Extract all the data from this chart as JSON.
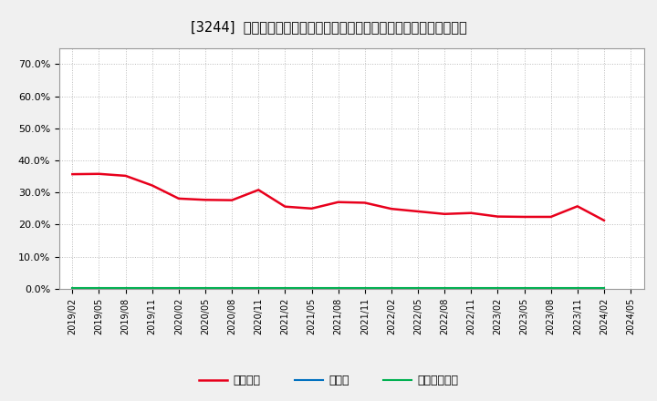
{
  "title": "[3244]  自己資本、のれん、繰延税金資産の総資産に対する比率の推移",
  "x_labels": [
    "2019/02",
    "2019/05",
    "2019/08",
    "2019/11",
    "2020/02",
    "2020/05",
    "2020/08",
    "2020/11",
    "2021/02",
    "2021/05",
    "2021/08",
    "2021/11",
    "2022/02",
    "2022/05",
    "2022/08",
    "2022/11",
    "2023/02",
    "2023/05",
    "2023/08",
    "2023/11",
    "2024/02",
    "2024/05"
  ],
  "equity_ratio": [
    0.357,
    0.358,
    0.352,
    0.322,
    0.281,
    0.277,
    0.276,
    0.308,
    0.256,
    0.25,
    0.27,
    0.268,
    0.249,
    0.241,
    0.233,
    0.236,
    0.225,
    0.224,
    0.224,
    0.257,
    0.213,
    null
  ],
  "goodwill_ratio": [
    0.0005,
    0.0005,
    0.0005,
    0.0005,
    0.0005,
    0.0005,
    0.0005,
    0.0005,
    0.0005,
    0.0005,
    0.0005,
    0.0005,
    0.0005,
    0.0005,
    0.0005,
    0.0005,
    0.0005,
    0.0005,
    0.0005,
    0.0005,
    0.0005,
    null
  ],
  "deferred_tax_ratio": [
    0.003,
    0.003,
    0.003,
    0.003,
    0.003,
    0.003,
    0.003,
    0.003,
    0.003,
    0.003,
    0.003,
    0.003,
    0.003,
    0.003,
    0.003,
    0.003,
    0.003,
    0.003,
    0.003,
    0.003,
    0.003,
    null
  ],
  "equity_color": "#e8001c",
  "goodwill_color": "#0070c0",
  "deferred_tax_color": "#00b050",
  "bg_color": "#f0f0f0",
  "plot_bg_color": "#ffffff",
  "grid_color": "#aaaaaa",
  "ylim": [
    0.0,
    0.75
  ],
  "yticks": [
    0.0,
    0.1,
    0.2,
    0.3,
    0.4,
    0.5,
    0.6,
    0.7
  ],
  "legend_labels": [
    "自己資本",
    "のれん",
    "繰延税金資産"
  ]
}
